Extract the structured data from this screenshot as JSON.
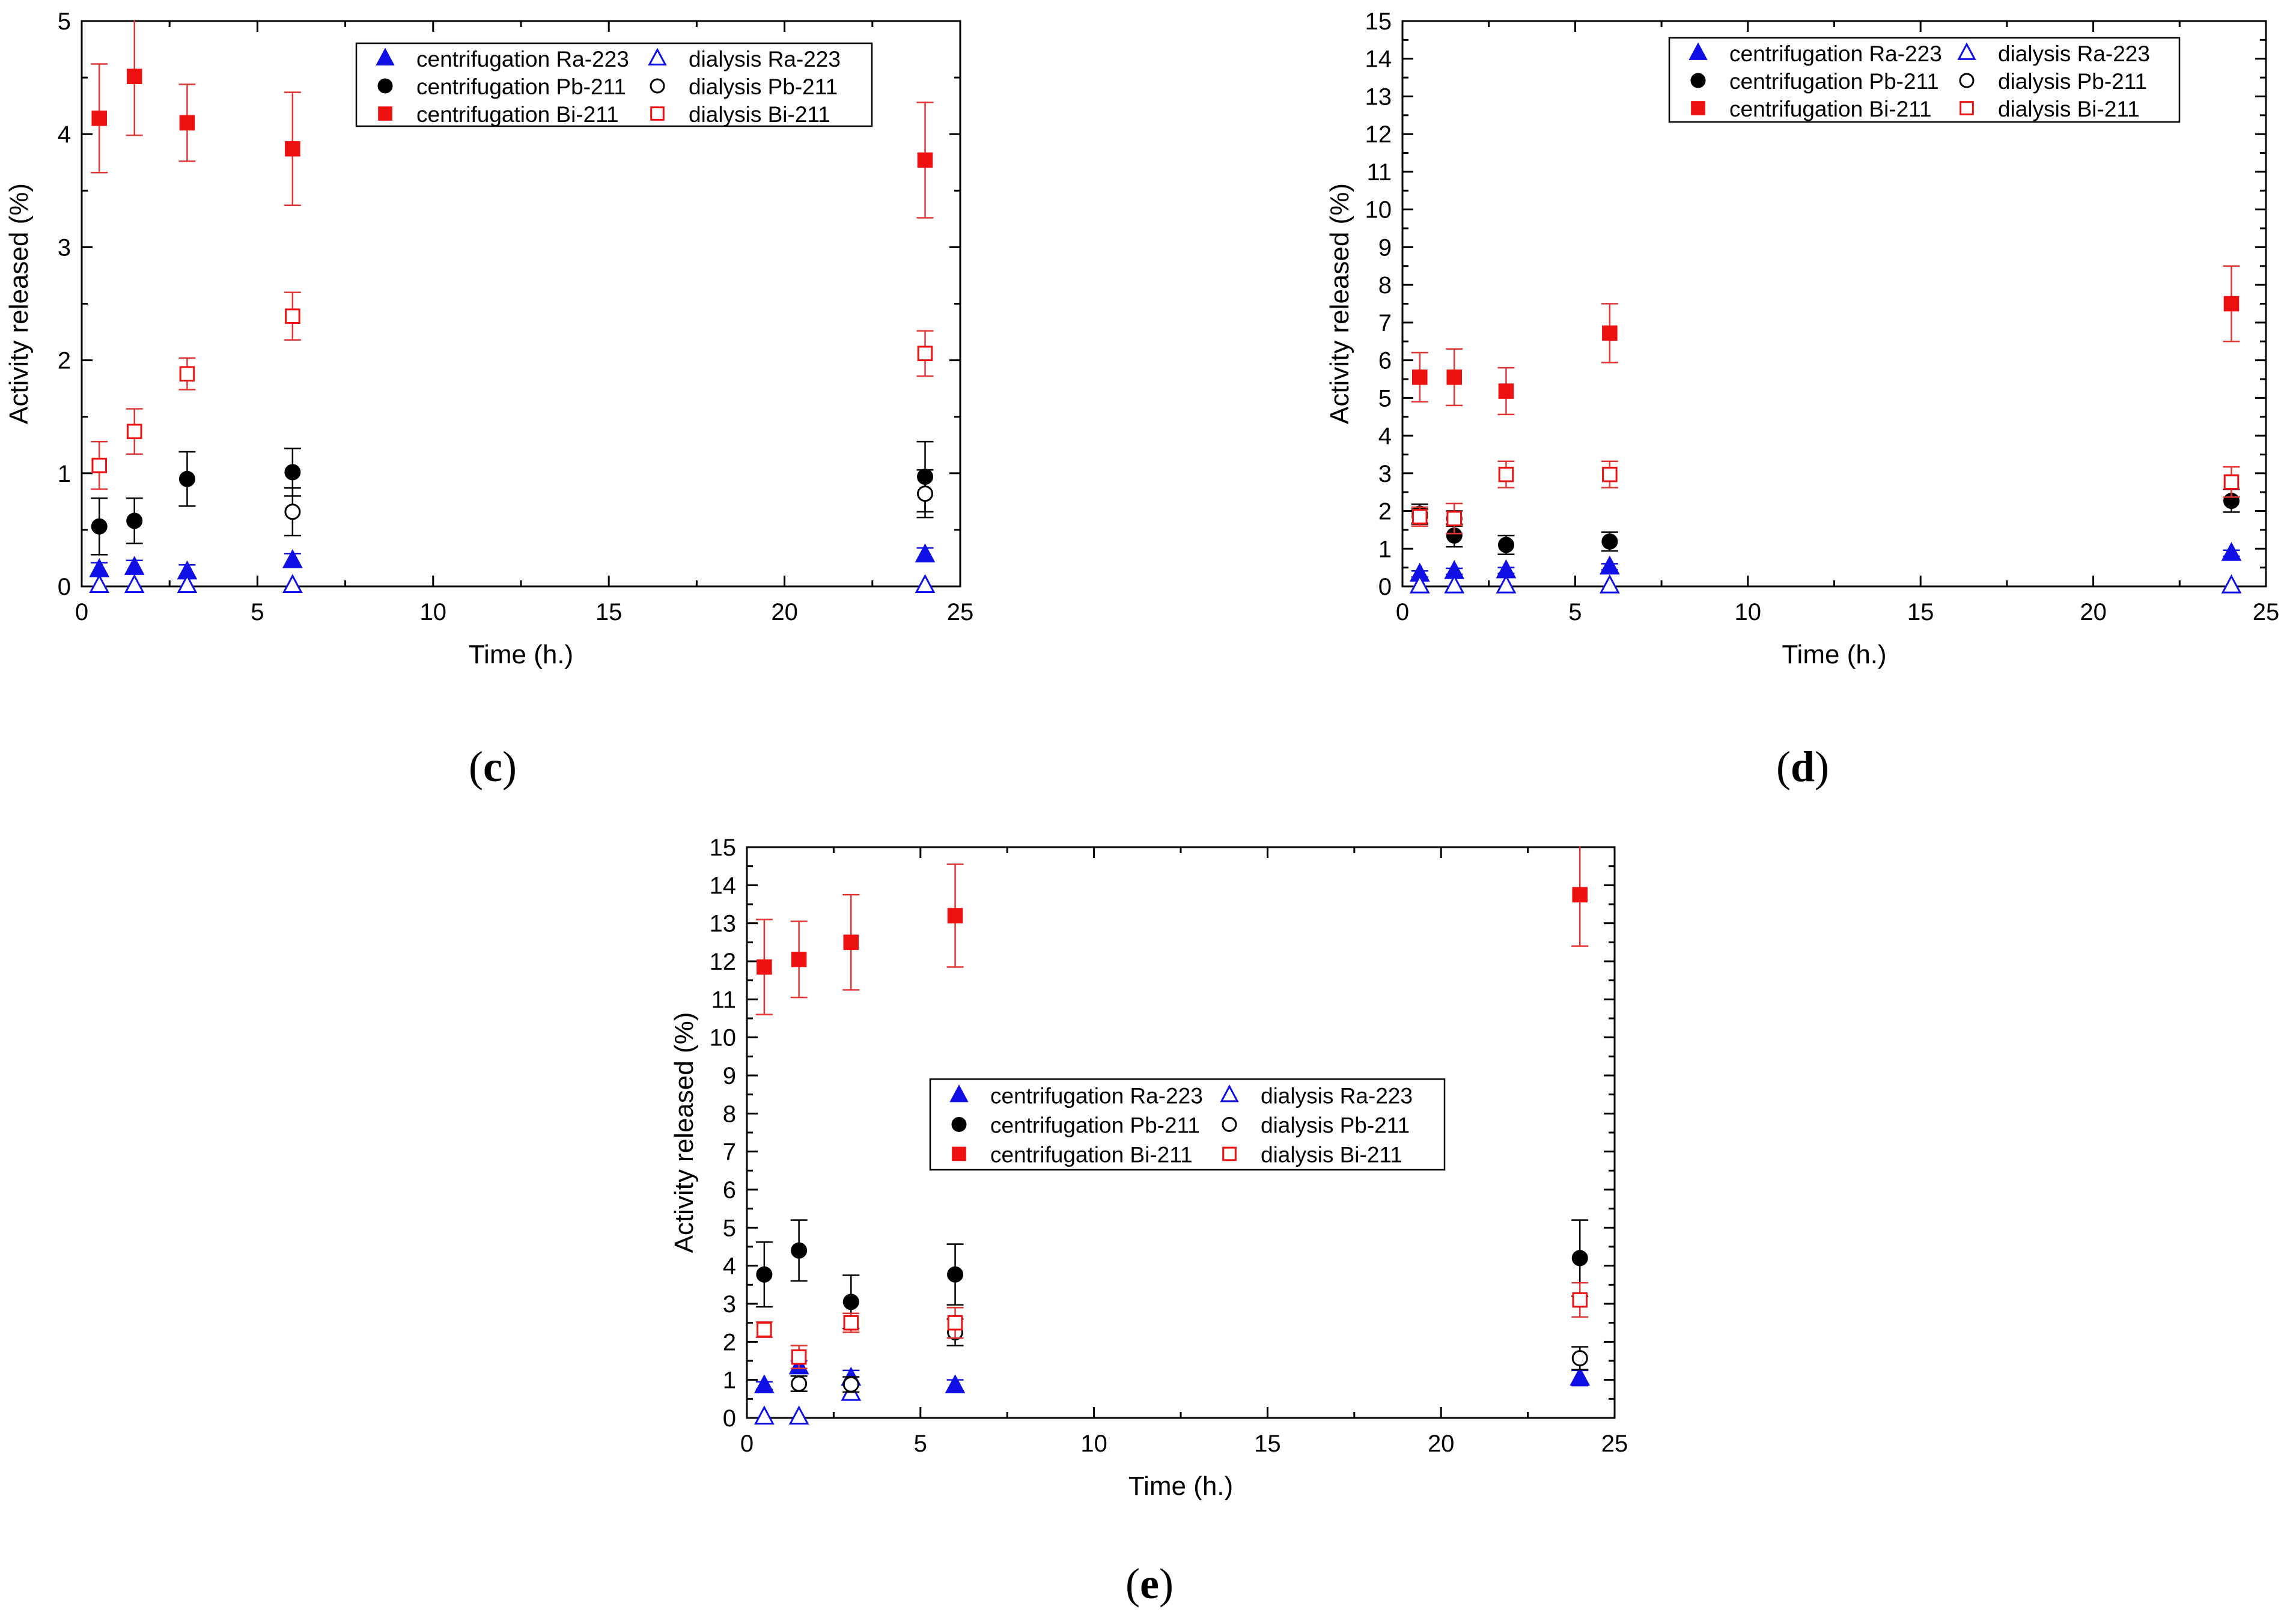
{
  "colors": {
    "ra": "#1010e6",
    "pb": "#000000",
    "bi": "#ee1111",
    "bi_err": "#e03535"
  },
  "chart_data": [
    {
      "type": "scatter",
      "panel_label": "(c)",
      "xlabel": "Time (h.)",
      "ylabel": "Activity released (%)",
      "xlim": [
        0,
        25
      ],
      "ylim": [
        0,
        5
      ],
      "xticks": [
        0,
        5,
        10,
        15,
        20,
        25
      ],
      "yticks": [
        0,
        1,
        2,
        3,
        4,
        5
      ],
      "legend_position": "top-right",
      "series": [
        {
          "name": "centrifugation Ra-223",
          "marker": "triangle",
          "filled": true,
          "color": "#1010e6",
          "x": [
            0.5,
            1.5,
            3,
            6,
            24
          ],
          "y": [
            0.15,
            0.17,
            0.13,
            0.23,
            0.28
          ],
          "err": [
            0.06,
            0.06,
            0.06,
            0.06,
            0.06
          ]
        },
        {
          "name": "dialysis Ra-223",
          "marker": "triangle",
          "filled": false,
          "color": "#1010e6",
          "x": [
            0.5,
            1.5,
            3,
            6,
            24
          ],
          "y": [
            0.01,
            0.01,
            0.01,
            0.01,
            0.01
          ],
          "err": [
            0,
            0,
            0,
            0,
            0
          ]
        },
        {
          "name": "centrifugation Pb-211",
          "marker": "circle",
          "filled": true,
          "color": "#000000",
          "x": [
            0.5,
            1.5,
            3,
            6,
            24
          ],
          "y": [
            0.53,
            0.58,
            0.95,
            1.01,
            0.97
          ],
          "err": [
            0.25,
            0.2,
            0.24,
            0.21,
            0.31
          ]
        },
        {
          "name": "dialysis Pb-211",
          "marker": "circle",
          "filled": false,
          "color": "#000000",
          "x": [
            6,
            24
          ],
          "y": [
            0.66,
            0.82
          ],
          "err": [
            0.21,
            0.21
          ]
        },
        {
          "name": "centrifugation Bi-211",
          "marker": "square",
          "filled": true,
          "color": "#ee1111",
          "x": [
            0.5,
            1.5,
            3,
            6,
            24
          ],
          "y": [
            4.14,
            4.51,
            4.1,
            3.87,
            3.77
          ],
          "err": [
            0.48,
            0.52,
            0.34,
            0.5,
            0.51
          ]
        },
        {
          "name": "dialysis Bi-211",
          "marker": "square",
          "filled": false,
          "color": "#ee1111",
          "x": [
            0.5,
            1.5,
            3,
            6,
            24
          ],
          "y": [
            1.07,
            1.37,
            1.88,
            2.39,
            2.06
          ],
          "err": [
            0.21,
            0.2,
            0.14,
            0.21,
            0.2
          ]
        }
      ]
    },
    {
      "type": "scatter",
      "panel_label": "(d)",
      "xlabel": "Time (h.)",
      "ylabel": "Activity released (%)",
      "xlim": [
        0,
        25
      ],
      "ylim": [
        0,
        15
      ],
      "xticks": [
        0,
        5,
        10,
        15,
        20,
        25
      ],
      "yticks": [
        0,
        1,
        2,
        3,
        4,
        5,
        6,
        7,
        8,
        9,
        10,
        11,
        12,
        13,
        14,
        15
      ],
      "legend_position": "top-right",
      "series": [
        {
          "name": "centrifugation Ra-223",
          "marker": "triangle",
          "filled": true,
          "color": "#1010e6",
          "x": [
            0.5,
            1.5,
            3,
            6,
            24
          ],
          "y": [
            0.33,
            0.4,
            0.42,
            0.52,
            0.88
          ],
          "err": [
            0.08,
            0.08,
            0.08,
            0.08,
            0.08
          ]
        },
        {
          "name": "dialysis Ra-223",
          "marker": "triangle",
          "filled": false,
          "color": "#1010e6",
          "x": [
            0.5,
            1.5,
            3,
            6,
            24
          ],
          "y": [
            0.02,
            0.02,
            0.02,
            0.02,
            0.02
          ],
          "err": [
            0,
            0,
            0,
            0,
            0
          ]
        },
        {
          "name": "centrifugation Pb-211",
          "marker": "circle",
          "filled": true,
          "color": "#000000",
          "x": [
            0.5,
            1.5,
            3,
            6,
            24
          ],
          "y": [
            1.93,
            1.35,
            1.1,
            1.19,
            2.27
          ],
          "err": [
            0.25,
            0.3,
            0.25,
            0.25,
            0.3
          ]
        },
        {
          "name": "dialysis Pb-211",
          "marker": "circle",
          "filled": false,
          "color": "#000000",
          "x": [
            0.5,
            1.5
          ],
          "y": [
            1.85,
            1.8
          ],
          "err": [
            0.2,
            0.2
          ]
        },
        {
          "name": "centrifugation Bi-211",
          "marker": "square",
          "filled": true,
          "color": "#ee1111",
          "x": [
            0.5,
            1.5,
            3,
            6,
            24
          ],
          "y": [
            5.55,
            5.55,
            5.18,
            6.72,
            7.5
          ],
          "err": [
            0.65,
            0.75,
            0.62,
            0.78,
            1.0
          ]
        },
        {
          "name": "dialysis Bi-211",
          "marker": "square",
          "filled": false,
          "color": "#ee1111",
          "x": [
            0.5,
            1.5,
            3,
            6,
            24
          ],
          "y": [
            1.85,
            1.8,
            2.97,
            2.97,
            2.77
          ],
          "err": [
            0.25,
            0.4,
            0.35,
            0.35,
            0.4
          ]
        }
      ]
    },
    {
      "type": "scatter",
      "panel_label": "(e)",
      "xlabel": "Time (h.)",
      "ylabel": "Activity released (%)",
      "xlim": [
        0,
        25
      ],
      "ylim": [
        0,
        15
      ],
      "xticks": [
        0,
        5,
        10,
        15,
        20,
        25
      ],
      "yticks": [
        0,
        1,
        2,
        3,
        4,
        5,
        6,
        7,
        8,
        9,
        10,
        11,
        12,
        13,
        14,
        15
      ],
      "legend_position": "center",
      "series": [
        {
          "name": "centrifugation Ra-223",
          "marker": "triangle",
          "filled": true,
          "color": "#1010e6",
          "x": [
            0.5,
            1.5,
            3,
            6,
            24
          ],
          "y": [
            0.85,
            1.35,
            1.05,
            0.85,
            1.05
          ],
          "err": [
            0.1,
            0.15,
            0.2,
            0.15,
            0.2
          ]
        },
        {
          "name": "dialysis Ra-223",
          "marker": "triangle",
          "filled": false,
          "color": "#1010e6",
          "x": [
            0.5,
            1.5,
            3
          ],
          "y": [
            0.03,
            0.03,
            0.65
          ],
          "err": [
            0,
            0,
            0
          ]
        },
        {
          "name": "centrifugation Pb-211",
          "marker": "circle",
          "filled": true,
          "color": "#000000",
          "x": [
            0.5,
            1.5,
            3,
            6,
            24
          ],
          "y": [
            3.77,
            4.4,
            3.05,
            3.77,
            4.2
          ],
          "err": [
            0.85,
            0.8,
            0.7,
            0.8,
            1.0
          ]
        },
        {
          "name": "dialysis Pb-211",
          "marker": "circle",
          "filled": false,
          "color": "#000000",
          "x": [
            1.5,
            3,
            6,
            24
          ],
          "y": [
            0.9,
            0.88,
            2.25,
            1.57
          ],
          "err": [
            0.2,
            0.2,
            0.35,
            0.3
          ]
        },
        {
          "name": "centrifugation Bi-211",
          "marker": "square",
          "filled": true,
          "color": "#ee1111",
          "x": [
            0.5,
            1.5,
            3,
            6,
            24
          ],
          "y": [
            11.85,
            12.05,
            12.5,
            13.2,
            13.75
          ],
          "err": [
            1.25,
            1.0,
            1.25,
            1.35,
            1.35
          ]
        },
        {
          "name": "dialysis Bi-211",
          "marker": "square",
          "filled": false,
          "color": "#ee1111",
          "x": [
            0.5,
            1.5,
            3,
            6,
            24
          ],
          "y": [
            2.32,
            1.6,
            2.5,
            2.5,
            3.1
          ],
          "err": [
            0.2,
            0.3,
            0.25,
            0.4,
            0.45
          ]
        }
      ]
    }
  ]
}
